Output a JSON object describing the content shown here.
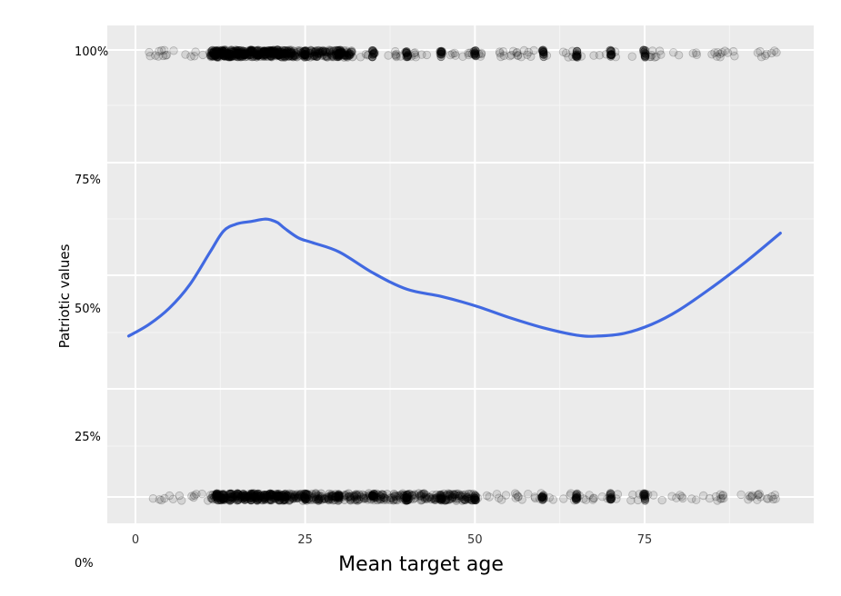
{
  "chart_data": {
    "type": "scatter",
    "xlabel": "Mean target age",
    "ylabel": "Patriotic values",
    "x_ticks": [
      0,
      25,
      50,
      75
    ],
    "x_tick_labels": [
      "0",
      "25",
      "50",
      "75"
    ],
    "y_ticks": [
      0,
      25,
      50,
      75,
      100
    ],
    "y_tick_labels": [
      "0%",
      "25%",
      "50%",
      "75%",
      "100%"
    ],
    "xlim": [
      -4,
      100
    ],
    "grid": true,
    "background": "#ebebeb",
    "smooth_color": "#4169e1",
    "point_color": "#000000",
    "series": [
      {
        "kind": "points",
        "y_value": 100,
        "x_min": 0,
        "x_max": 95,
        "dense_range": [
          11,
          32
        ],
        "dense_columns": [
          12,
          13,
          14,
          15,
          16,
          17,
          18,
          19,
          20,
          21,
          22,
          25,
          30,
          35,
          40,
          45,
          50,
          60,
          65,
          70,
          75
        ]
      },
      {
        "kind": "points",
        "y_value": 0,
        "x_min": 0,
        "x_max": 95,
        "dense_range": [
          11,
          50
        ],
        "dense_columns": [
          12,
          13,
          14,
          15,
          16,
          17,
          18,
          19,
          20,
          21,
          22,
          25,
          30,
          35,
          40,
          45,
          50,
          60,
          65,
          70,
          75
        ]
      },
      {
        "kind": "smooth",
        "x": [
          -1,
          2,
          5,
          8,
          11,
          13,
          15,
          17,
          19,
          20,
          21,
          22,
          24,
          26,
          30,
          35,
          40,
          45,
          50,
          55,
          60,
          65,
          68,
          72,
          76,
          80,
          85,
          90,
          95
        ],
        "y": [
          37,
          39.5,
          43,
          48,
          55,
          59.5,
          61,
          61.5,
          62,
          61.8,
          61.2,
          60,
          58,
          57,
          55,
          50.5,
          47,
          45.5,
          43.5,
          41,
          38.8,
          37.2,
          37,
          37.6,
          39.5,
          42.5,
          47.5,
          53,
          59
        ]
      }
    ]
  }
}
